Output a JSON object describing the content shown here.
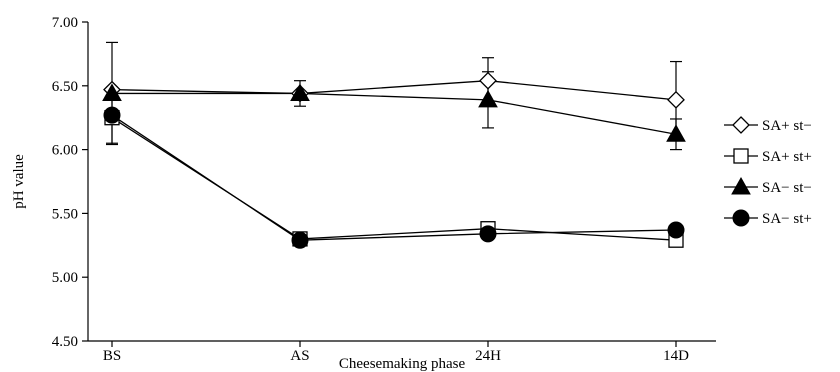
{
  "chart_data": {
    "type": "line",
    "title": "",
    "xlabel": "Cheesemaking phase",
    "ylabel": "pH value",
    "categories": [
      "BS",
      "AS",
      "24H",
      "14D"
    ],
    "ylim": [
      4.5,
      7.0
    ],
    "ystep": 0.5,
    "yticks": [
      "4.50",
      "5.00",
      "5.50",
      "6.00",
      "6.50",
      "7.00"
    ],
    "grid": false,
    "legend_position": "right",
    "series": [
      {
        "name": "SA+ st−",
        "marker": "diamond-open",
        "values": [
          6.47,
          6.44,
          6.54,
          6.39
        ],
        "errors": [
          0.0,
          0.0,
          0.18,
          0.3
        ]
      },
      {
        "name": "SA+ st+",
        "marker": "square-open",
        "values": [
          6.25,
          5.3,
          5.38,
          5.29
        ],
        "errors": [
          0.0,
          0.0,
          0.0,
          0.0
        ]
      },
      {
        "name": "SA− st−",
        "marker": "triangle-filled",
        "values": [
          6.44,
          6.44,
          6.39,
          6.12
        ],
        "errors": [
          0.4,
          0.1,
          0.22,
          0.12
        ]
      },
      {
        "name": "SA− st+",
        "marker": "circle-filled",
        "values": [
          6.27,
          5.29,
          5.34,
          5.37
        ],
        "errors": [
          0.22,
          0.0,
          0.0,
          0.0
        ]
      }
    ]
  }
}
